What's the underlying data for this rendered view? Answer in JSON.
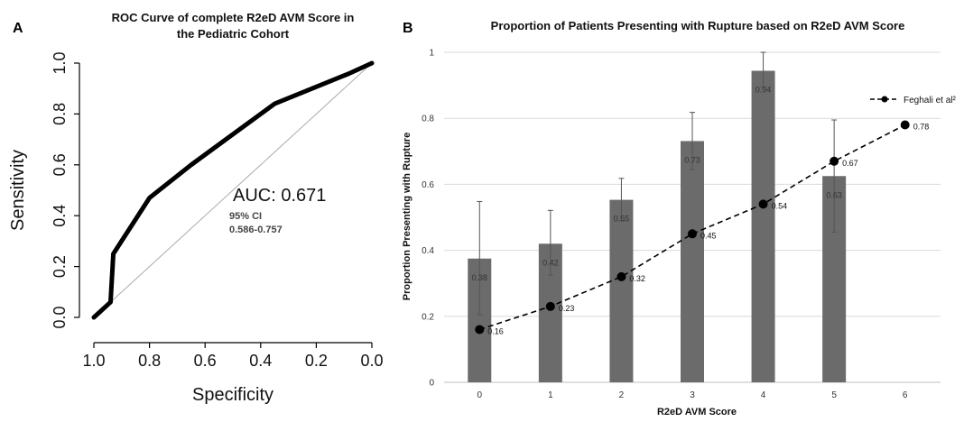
{
  "panel_a": {
    "letter": "A",
    "title_line1": "ROC Curve of complete R2eD AVM Score in",
    "title_line2": "the Pediatric Cohort"
  },
  "panel_b": {
    "letter": "B",
    "title": "Proportion of Patients Presenting with Rupture based on R2eD AVM Score"
  },
  "colors": {
    "bar": "#6b6b6b",
    "roc_curve": "#000000",
    "reference_line": "#aaaaaa",
    "grid": "#d9d9d9",
    "line_series": "#000000"
  },
  "chart_data": [
    {
      "type": "line",
      "title": "ROC Curve of complete R2eD AVM Score in the Pediatric Cohort",
      "xlabel": "Specificity",
      "ylabel": "Sensitivity",
      "x_reversed": true,
      "xlim": [
        1.0,
        0.0
      ],
      "ylim": [
        0.0,
        1.0
      ],
      "xticks": [
        "1.0",
        "0.8",
        "0.6",
        "0.4",
        "0.2",
        "0.0"
      ],
      "xtick_values": [
        1.0,
        0.8,
        0.6,
        0.4,
        0.2,
        0.0
      ],
      "yticks": [
        "0.0",
        "0.2",
        "0.4",
        "0.6",
        "0.8",
        "1.0"
      ],
      "ytick_values": [
        0.0,
        0.2,
        0.4,
        0.6,
        0.8,
        1.0
      ],
      "grid": false,
      "series": [
        {
          "x": [
            1.0,
            0.94,
            0.93,
            0.8,
            0.65,
            0.35,
            0.08,
            0.0
          ],
          "y": [
            0.0,
            0.06,
            0.25,
            0.47,
            0.6,
            0.84,
            0.96,
            1.0
          ]
        }
      ],
      "reference_line": {
        "x": [
          1.0,
          0.0
        ],
        "y": [
          0.0,
          1.0
        ]
      },
      "annotations": {
        "auc": "AUC: 0.671",
        "ci_label": "95% CI",
        "ci_range": "0.586-0.757"
      }
    },
    {
      "type": "bar",
      "title": "Proportion of Patients Presenting with Rupture based on R2eD AVM Score",
      "xlabel": "R2eD AVM Score",
      "ylabel": "Proportion Presenting with Rupture",
      "categories": [
        "0",
        "1",
        "2",
        "3",
        "4",
        "5",
        "6"
      ],
      "ylim": [
        0,
        1
      ],
      "yticks": [
        "0",
        "0.2",
        "0.4",
        "0.6",
        "0.8",
        "1"
      ],
      "ytick_values": [
        0,
        0.2,
        0.4,
        0.6,
        0.8,
        1
      ],
      "grid": true,
      "legend_position": "top-right",
      "bars": {
        "values": [
          0.375,
          0.42,
          0.553,
          0.731,
          0.944,
          0.625,
          null
        ],
        "labels": [
          "0.38",
          "0.42",
          "0.55",
          "0.73",
          "0.94",
          "0.63",
          ""
        ],
        "error_low": [
          0.205,
          0.325,
          0.49,
          0.645,
          0.895,
          0.455,
          null
        ],
        "error_high": [
          0.548,
          0.521,
          0.618,
          0.818,
          1.0,
          0.795,
          null
        ]
      },
      "series": [
        {
          "name": "Feghali et al²",
          "values": [
            0.16,
            0.23,
            0.32,
            0.45,
            0.54,
            0.67,
            0.78
          ],
          "labels": [
            "0.16",
            "0.23",
            "0.32",
            "0.45",
            "0.54",
            "0.67",
            "0.78"
          ]
        }
      ]
    }
  ]
}
